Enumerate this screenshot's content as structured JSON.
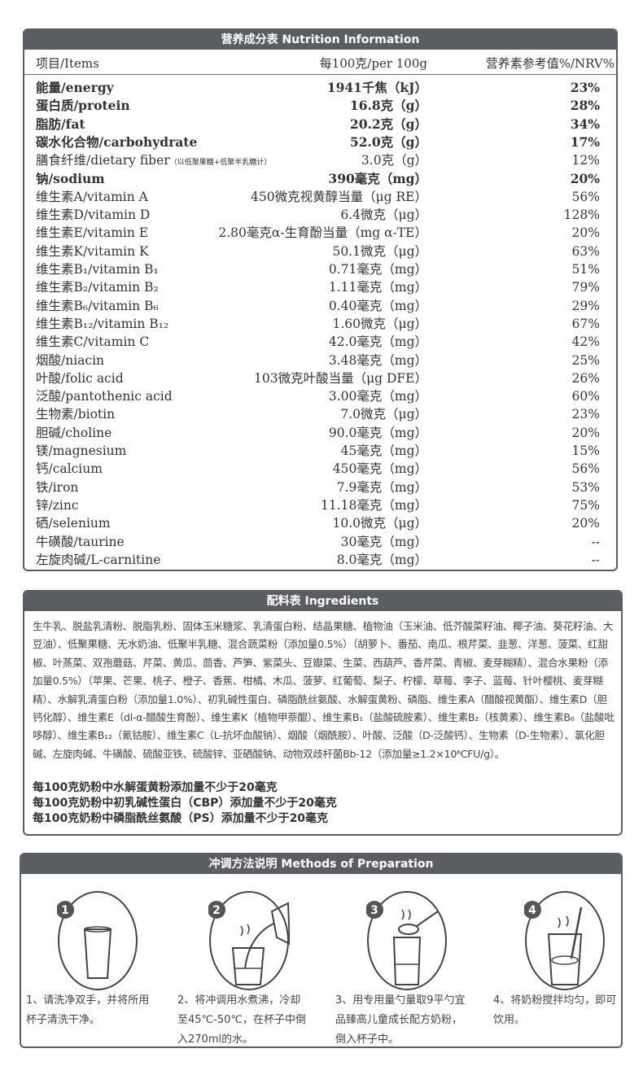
{
  "nutrition": {
    "title": "营养成分表 Nutrition Information",
    "headers": {
      "item": "项目/Items",
      "per": "每100克/per 100g",
      "nrv": "营养素参考值%/NRV%"
    },
    "rows": [
      {
        "name": "能量/energy",
        "value": "1941千焦（kJ）",
        "nrv": "23%",
        "bold": true
      },
      {
        "name": "蛋白质/protein",
        "value": "16.8克（g）",
        "nrv": "28%",
        "bold": true
      },
      {
        "name": "脂肪/fat",
        "value": "20.2克（g）",
        "nrv": "34%",
        "bold": true
      },
      {
        "name": "碳水化合物/carbohydrate",
        "value": "52.0克（g）",
        "nrv": "17%",
        "bold": true
      },
      {
        "name": "膳食纤维/dietary fiber",
        "note": "（以低聚果糖+低聚半乳糖计）",
        "value": "3.0克（g）",
        "nrv": "12%"
      },
      {
        "name": "钠/sodium",
        "value": "390毫克（mg）",
        "nrv": "20%",
        "bold": true
      },
      {
        "name": "维生素A/vitamin A",
        "value": "450微克视黄醇当量（μg RE）",
        "nrv": "56%"
      },
      {
        "name": "维生素D/vitamin D",
        "value": "6.4微克（μg）",
        "nrv": "128%"
      },
      {
        "name": "维生素E/vitamin E",
        "value": "2.80毫克α-生育酚当量（mg α-TE）",
        "nrv": "20%"
      },
      {
        "name": "维生素K/vitamin K",
        "value": "50.1微克（μg）",
        "nrv": "63%"
      },
      {
        "name": "维生素B₁/vitamin B₁",
        "value": "0.71毫克（mg）",
        "nrv": "51%"
      },
      {
        "name": "维生素B₂/vitamin B₂",
        "value": "1.11毫克（mg）",
        "nrv": "79%"
      },
      {
        "name": "维生素B₆/vitamin B₆",
        "value": "0.40毫克（mg）",
        "nrv": "29%"
      },
      {
        "name": "维生素B₁₂/vitamin B₁₂",
        "value": "1.60微克（μg）",
        "nrv": "67%"
      },
      {
        "name": "维生素C/vitamin C",
        "value": "42.0毫克（mg）",
        "nrv": "42%"
      },
      {
        "name": "烟酸/niacin",
        "value": "3.48毫克（mg）",
        "nrv": "25%"
      },
      {
        "name": "叶酸/folic acid",
        "value": "103微克叶酸当量（μg DFE）",
        "nrv": "26%"
      },
      {
        "name": "泛酸/pantothenic acid",
        "value": "3.00毫克（mg）",
        "nrv": "60%"
      },
      {
        "name": "生物素/biotin",
        "value": "7.0微克（μg）",
        "nrv": "23%"
      },
      {
        "name": "胆碱/choline",
        "value": "90.0毫克（mg）",
        "nrv": "20%"
      },
      {
        "name": "镁/magnesium",
        "value": "45毫克（mg）",
        "nrv": "15%"
      },
      {
        "name": "钙/calcium",
        "value": "450毫克（mg）",
        "nrv": "56%"
      },
      {
        "name": "铁/iron",
        "value": "7.9毫克（mg）",
        "nrv": "53%"
      },
      {
        "name": "锌/zinc",
        "value": "11.18毫克（mg）",
        "nrv": "75%"
      },
      {
        "name": "硒/selenium",
        "value": "10.0微克（μg）",
        "nrv": "20%"
      },
      {
        "name": "牛磺酸/taurine",
        "value": "30毫克（mg）",
        "nrv": "--"
      },
      {
        "name": "左旋肉碱/L-carnitine",
        "value": "8.0毫克（mg）",
        "nrv": "--"
      }
    ]
  },
  "ingredients": {
    "title": "配料表 Ingredients",
    "text": "生牛乳、脱盐乳清粉、脱脂乳粉、固体玉米糖浆、乳清蛋白粉、结晶果糖、植物油（玉米油、低芥酸菜籽油、椰子油、葵花籽油、大豆油）、低聚果糖、无水奶油、低聚半乳糖、混合蔬菜粉（添加量0.5%）（胡萝卜、番茄、南瓜、根芹菜、韭葱、洋葱、菠菜、红甜椒、叶蒸菜、双孢蘑菇、芹菜、黄瓜、茴香、芦笋、紫菜头、豆瓣菜、生菜、西葫芦、香芹菜、青椒、麦芽糊精）、混合水果粉（添加量0.5%）（苹果、芒果、桃子、橙子、香蕉、柑橘、木瓜、菠萝、红葡萄、梨子、柠檬、草莓、李子、蓝莓、针叶樱桃、麦芽糊精）、水解乳清蛋白粉（添加量1.0%）、初乳碱性蛋白、磷脂酰丝氨酸、水解蛋黄粉、磷脂、维生素A（醋酸视黄酯）、维生素D（胆钙化醇）、维生素E（dl-α-醋酸生育酚）、维生素K（植物甲萘醌）、维生素B₁（盐酸硫胺素）、维生素B₂（核黄素）、维生素B₆（盐酸吡哆醇）、维生素B₁₂（氰钴胺）、维生素C（L-抗坏血酸钠）、烟酸（烟酰胺）、叶酸、泛酸（D-泛酸钙）、生物素（D-生物素）、氯化胆碱、左旋肉碱、牛磺酸、硫酸亚铁、硫酸锌、亚硒酸钠、动物双歧杆菌Bb-12（添加量≥1.2×10⁶CFU/g）。",
    "claims": [
      "每100克奶粉中水解蛋黄粉添加量不少于20毫克",
      "每100克奶粉中初乳碱性蛋白（CBP）添加量不少于20毫克",
      "每100克奶粉中磷脂酰丝氨酸（PS）添加量不少于20毫克"
    ]
  },
  "preparation": {
    "title": "冲调方法说明 Methods of Preparation",
    "steps": [
      {
        "number": "1",
        "icon": "empty-glass-icon",
        "text": "1、请洗净双手，并将所用杯子清洗干净。"
      },
      {
        "number": "2",
        "icon": "pour-water-icon",
        "text": "2、将冲调用水煮沸，冷却至45℃-50℃，在杯子中倒入270ml的水。"
      },
      {
        "number": "3",
        "icon": "spoon-powder-icon",
        "text": "3、用专用量勺量取9平勺宜品臻高儿童成长配方奶粉，倒入杯子中。"
      },
      {
        "number": "4",
        "icon": "stir-glass-icon",
        "text": "4、将奶粉搅拌均匀，即可饮用。"
      }
    ]
  },
  "colors": {
    "header_bar": "#5a5e62",
    "text": "#333333"
  }
}
